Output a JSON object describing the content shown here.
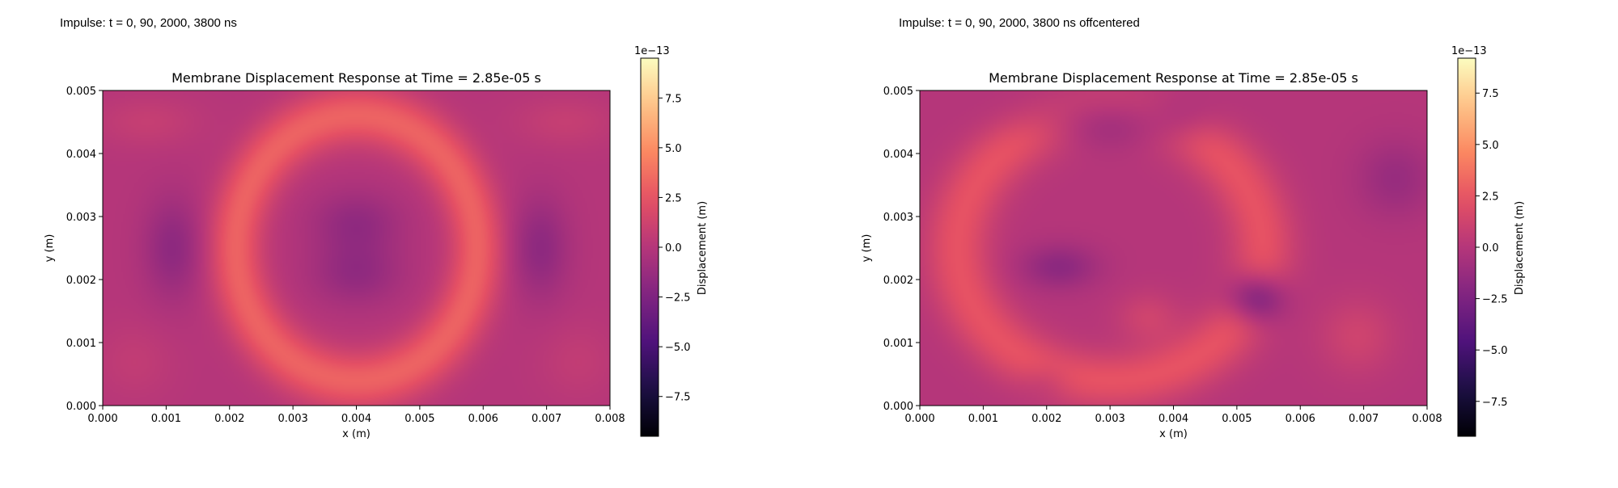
{
  "captions": [
    "Impulse: t = 0, 90, 2000, 3800 ns",
    "Impulse: t = 0, 90, 2000, 3800 ns offcentered"
  ],
  "chart_data": [
    {
      "type": "heatmap",
      "title": "Membrane Displacement Response at Time = 2.85e-05 s",
      "xlabel": "x (m)",
      "ylabel": "y (m)",
      "xlim": [
        0,
        0.008
      ],
      "ylim": [
        0,
        0.005
      ],
      "xticks": [
        "0.000",
        "0.001",
        "0.002",
        "0.003",
        "0.004",
        "0.005",
        "0.006",
        "0.007",
        "0.008"
      ],
      "yticks": [
        "0.000",
        "0.001",
        "0.002",
        "0.003",
        "0.004",
        "0.005"
      ],
      "colormap": "magma",
      "colorbar": {
        "label": "Displacement (m)",
        "offset_text": "1e−13",
        "range": [
          -9.5,
          9.5
        ],
        "ticks": [
          "−7.5",
          "−5.0",
          "−2.5",
          "0.0",
          "2.5",
          "5.0",
          "7.5"
        ]
      },
      "pattern": {
        "base": 0.0,
        "rings": [
          {
            "cx": 0.004,
            "cy": 0.0025,
            "rx": 0.0019,
            "ry": 0.0021,
            "width": 0.00042,
            "amplitude": 3.2
          }
        ],
        "blobs": [
          {
            "x": 0.004,
            "y": 0.0029,
            "sx": 0.0007,
            "sy": 0.0005,
            "amplitude": -1.6
          },
          {
            "x": 0.004,
            "y": 0.0021,
            "sx": 0.0007,
            "sy": 0.0005,
            "amplitude": -1.6
          },
          {
            "x": 0.0011,
            "y": 0.0025,
            "sx": 0.00045,
            "sy": 0.0008,
            "amplitude": -1.8
          },
          {
            "x": 0.0069,
            "y": 0.0025,
            "sx": 0.00045,
            "sy": 0.0008,
            "amplitude": -1.8
          },
          {
            "x": 0.0007,
            "y": 0.0045,
            "sx": 0.0008,
            "sy": 0.0004,
            "amplitude": 0.8
          },
          {
            "x": 0.0073,
            "y": 0.0045,
            "sx": 0.0008,
            "sy": 0.0004,
            "amplitude": 0.8
          },
          {
            "x": 0.0005,
            "y": 0.0007,
            "sx": 0.0006,
            "sy": 0.0006,
            "amplitude": 0.6
          },
          {
            "x": 0.0075,
            "y": 0.0007,
            "sx": 0.0006,
            "sy": 0.0006,
            "amplitude": 0.6
          }
        ]
      }
    },
    {
      "type": "heatmap",
      "title": "Membrane Displacement Response at Time = 2.85e-05 s",
      "xlabel": "x (m)",
      "ylabel": "y (m)",
      "xlim": [
        0,
        0.008
      ],
      "ylim": [
        0,
        0.005
      ],
      "xticks": [
        "0.000",
        "0.001",
        "0.002",
        "0.003",
        "0.004",
        "0.005",
        "0.006",
        "0.007",
        "0.008"
      ],
      "yticks": [
        "0.000",
        "0.001",
        "0.002",
        "0.003",
        "0.004",
        "0.005"
      ],
      "colormap": "magma",
      "colorbar": {
        "label": "Displacement (m)",
        "offset_text": "1e−13",
        "range": [
          -9.2,
          9.2
        ],
        "ticks": [
          "−7.5",
          "−5.0",
          "−2.5",
          "0.0",
          "2.5",
          "5.0",
          "7.5"
        ]
      },
      "pattern": {
        "base": 0.0,
        "rings": [
          {
            "cx": 0.003,
            "cy": 0.0025,
            "rx": 0.0024,
            "ry": 0.0021,
            "width": 0.00045,
            "amplitude": 2.4
          }
        ],
        "blobs": [
          {
            "x": 0.003,
            "y": 0.0045,
            "sx": 0.0011,
            "sy": 0.0004,
            "amplitude": -2.8
          },
          {
            "x": 0.0053,
            "y": 0.0017,
            "sx": 0.00045,
            "sy": 0.0004,
            "amplitude": -4.0
          },
          {
            "x": 0.0022,
            "y": 0.0022,
            "sx": 0.0006,
            "sy": 0.00035,
            "amplitude": -1.8
          },
          {
            "x": 0.0075,
            "y": 0.0036,
            "sx": 0.0006,
            "sy": 0.0006,
            "amplitude": -1.3
          },
          {
            "x": 0.0069,
            "y": 0.0011,
            "sx": 0.0006,
            "sy": 0.0006,
            "amplitude": 1.2
          },
          {
            "x": 0.0041,
            "y": 0.0045,
            "sx": 0.0005,
            "sy": 0.0004,
            "amplitude": -1.0
          },
          {
            "x": 0.0036,
            "y": 0.0014,
            "sx": 0.0005,
            "sy": 0.0004,
            "amplitude": 1.2
          },
          {
            "x": 0.002,
            "y": 0.0004,
            "sx": 0.0004,
            "sy": 0.0003,
            "amplitude": -0.8
          }
        ]
      }
    }
  ]
}
